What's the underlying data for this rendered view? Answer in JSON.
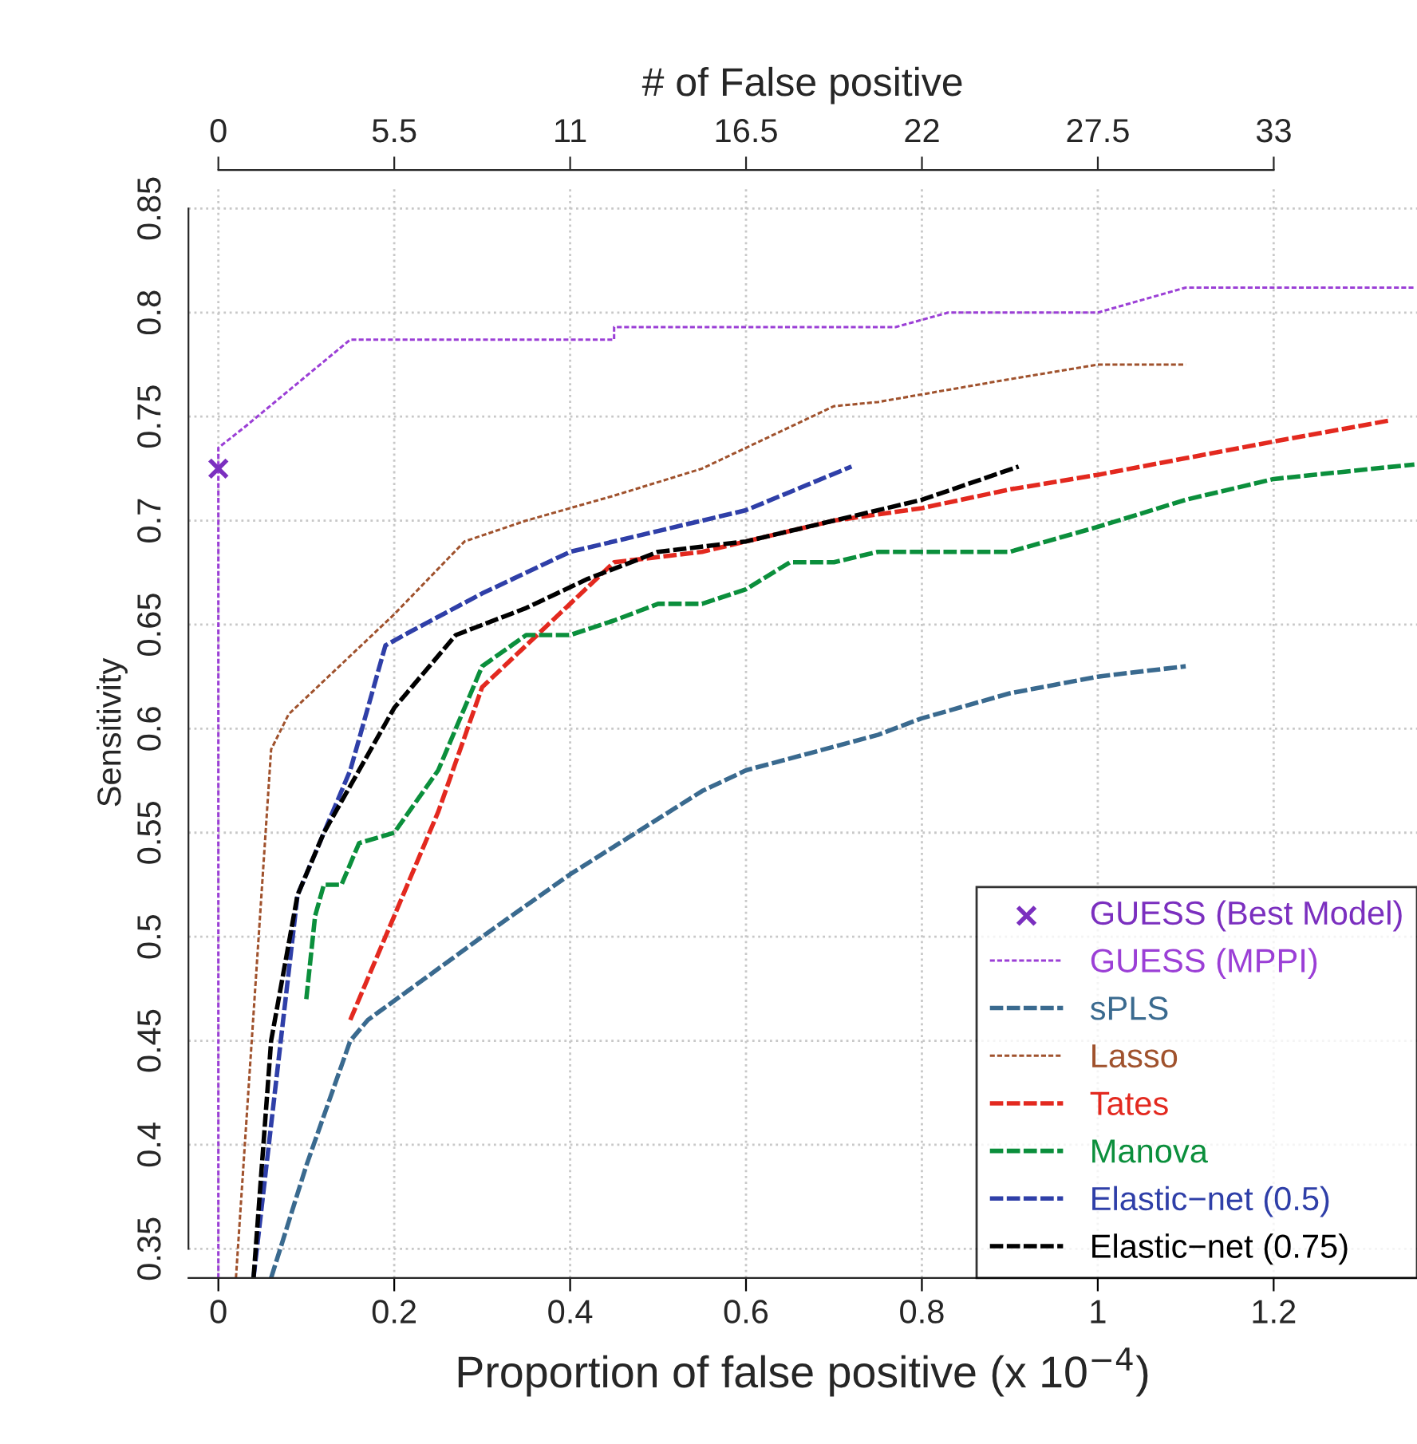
{
  "chart_data": {
    "type": "line",
    "xlabel": "Proportion of false positive (x 10$^{−4}$)",
    "ylabel": "Sensitivity",
    "x2label": "# of False positive",
    "xlim": [
      -0.034,
      1.363
    ],
    "xticks": [
      0,
      0.2,
      0.4,
      0.6,
      0.8,
      1,
      1.2
    ],
    "x2lim": [
      -0.935,
      37.48
    ],
    "x2ticks": [
      0,
      5.5,
      11,
      16.5,
      22,
      27.5,
      33
    ],
    "ylim": [
      0.336,
      0.86
    ],
    "yticks": [
      0.35,
      0.4,
      0.45,
      0.5,
      0.55,
      0.6,
      0.65,
      0.7,
      0.75,
      0.8,
      0.85
    ],
    "grid": true,
    "legend": "bottom right",
    "series": [
      {
        "name": "GUESS (Best Model)",
        "type": "scatter",
        "marker": "cross",
        "color": "#7b2fbf",
        "x": [
          0
        ],
        "values": [
          0.725
        ]
      },
      {
        "name": "GUESS (MPPI)",
        "color": "#9b3fd6",
        "line_style": "dotted",
        "x": [
          0,
          0,
          0.03,
          0.15,
          0.45,
          0.45,
          0.77,
          0.83,
          1.0,
          1.1,
          1.36
        ],
        "values": [
          0.336,
          0.735,
          0.745,
          0.787,
          0.787,
          0.793,
          0.793,
          0.8,
          0.8,
          0.812,
          0.812
        ]
      },
      {
        "name": "sPLS",
        "color": "#3a6a8f",
        "line_style": "dashed",
        "x": [
          0.06,
          0.1,
          0.15,
          0.17,
          0.3,
          0.4,
          0.55,
          0.6,
          0.75,
          0.8,
          0.9,
          1.0,
          1.1
        ],
        "values": [
          0.336,
          0.39,
          0.45,
          0.46,
          0.5,
          0.53,
          0.57,
          0.58,
          0.597,
          0.605,
          0.617,
          0.625,
          0.63
        ]
      },
      {
        "name": "Lasso",
        "color": "#a0522d",
        "line_style": "dotted",
        "x": [
          0.02,
          0.06,
          0.08,
          0.2,
          0.28,
          0.35,
          0.45,
          0.55,
          0.7,
          0.75,
          0.9,
          1.0,
          1.1
        ],
        "values": [
          0.336,
          0.59,
          0.607,
          0.655,
          0.69,
          0.7,
          0.712,
          0.725,
          0.755,
          0.757,
          0.768,
          0.775,
          0.775
        ]
      },
      {
        "name": "Tates",
        "color": "#e3291f",
        "line_style": "dashed",
        "x": [
          0.15,
          0.2,
          0.25,
          0.3,
          0.35,
          0.4,
          0.45,
          0.55,
          0.6,
          0.7,
          0.8,
          0.9,
          1.0,
          1.1,
          1.2,
          1.33
        ],
        "values": [
          0.46,
          0.51,
          0.56,
          0.62,
          0.64,
          0.66,
          0.68,
          0.685,
          0.69,
          0.7,
          0.706,
          0.715,
          0.722,
          0.73,
          0.738,
          0.748
        ]
      },
      {
        "name": "Manova",
        "color": "#0b8f3c",
        "line_style": "dashed",
        "x": [
          0.1,
          0.11,
          0.12,
          0.14,
          0.16,
          0.2,
          0.25,
          0.3,
          0.35,
          0.4,
          0.45,
          0.5,
          0.55,
          0.6,
          0.65,
          0.7,
          0.75,
          0.9,
          1.0,
          1.1,
          1.2,
          1.36
        ],
        "values": [
          0.47,
          0.51,
          0.525,
          0.525,
          0.545,
          0.55,
          0.58,
          0.63,
          0.645,
          0.645,
          0.652,
          0.66,
          0.66,
          0.667,
          0.68,
          0.68,
          0.685,
          0.685,
          0.697,
          0.71,
          0.72,
          0.727
        ]
      },
      {
        "name": "Elastic−net (0.5)",
        "color": "#2f3fa8",
        "line_style": "dashed",
        "x": [
          0.04,
          0.09,
          0.11,
          0.15,
          0.19,
          0.22,
          0.3,
          0.35,
          0.4,
          0.5,
          0.6,
          0.72
        ],
        "values": [
          0.336,
          0.52,
          0.54,
          0.58,
          0.64,
          0.647,
          0.665,
          0.675,
          0.685,
          0.695,
          0.705,
          0.726
        ]
      },
      {
        "name": "Elastic−net (0.75)",
        "color": "#000000",
        "line_style": "dashed",
        "x": [
          0.04,
          0.06,
          0.09,
          0.12,
          0.2,
          0.27,
          0.35,
          0.42,
          0.5,
          0.6,
          0.7,
          0.8,
          0.91
        ],
        "values": [
          0.336,
          0.45,
          0.52,
          0.55,
          0.61,
          0.645,
          0.658,
          0.672,
          0.685,
          0.69,
          0.7,
          0.71,
          0.726
        ]
      }
    ]
  }
}
